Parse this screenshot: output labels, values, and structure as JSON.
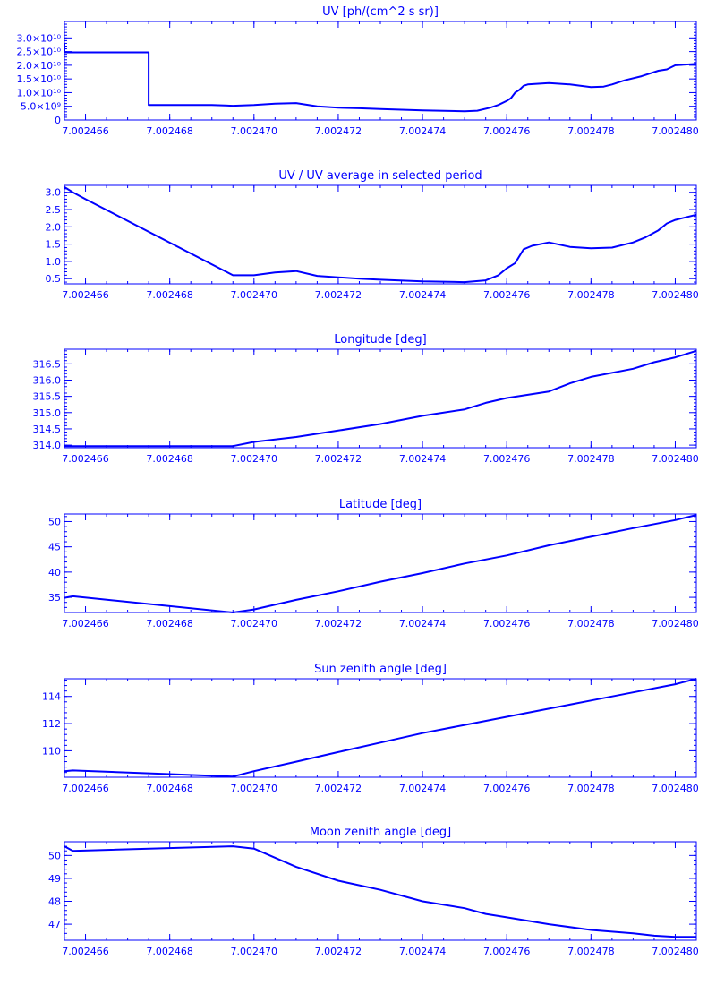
{
  "theme": {
    "color": "#0000ff",
    "background": "#ffffff"
  },
  "x_tick_labels": [
    "7.002466",
    "7.002468",
    "7.002470",
    "7.002472",
    "7.002474",
    "7.002476",
    "7.002478",
    "7.002480"
  ],
  "chart_data": [
    {
      "type": "line",
      "title": "UV [ph/(cm^2 s sr)]",
      "xlim": [
        7.0024655,
        7.0024805
      ],
      "ylim": [
        0,
        36000000000.0
      ],
      "yticks": [
        0,
        5000000000.0,
        10000000000.0,
        15000000000.0,
        20000000000.0,
        25000000000.0,
        30000000000.0
      ],
      "ytick_labels": [
        "0",
        "5.0×10⁹",
        "1.0×10¹⁰",
        "1.5×10¹⁰",
        "2.0×10¹⁰",
        "2.5×10¹⁰",
        "3.0×10¹⁰"
      ],
      "x": [
        7.0024655,
        7.0024655,
        7.0024675,
        7.0024675,
        7.002469,
        7.0024695,
        7.00247,
        7.0024705,
        7.002471,
        7.0024715,
        7.002472,
        7.0024725,
        7.002473,
        7.002474,
        7.002475,
        7.0024753,
        7.0024756,
        7.0024758,
        7.002476,
        7.0024761,
        7.0024762,
        7.0024763,
        7.0024764,
        7.0024765,
        7.002477,
        7.0024775,
        7.002478,
        7.0024783,
        7.0024785,
        7.0024788,
        7.0024792,
        7.0024796,
        7.0024798,
        7.00248,
        7.0024805
      ],
      "y": [
        28000000000.0,
        24700000000.0,
        24700000000.0,
        5500000000.0,
        5500000000.0,
        5200000000.0,
        5500000000.0,
        6000000000.0,
        6200000000.0,
        5000000000.0,
        4500000000.0,
        4300000000.0,
        4000000000.0,
        3500000000.0,
        3200000000.0,
        3400000000.0,
        4500000000.0,
        5500000000.0,
        7000000000.0,
        8000000000.0,
        10000000000.0,
        11000000000.0,
        12500000000.0,
        13000000000.0,
        13500000000.0,
        13000000000.0,
        12000000000.0,
        12200000000.0,
        13000000000.0,
        14500000000.0,
        16000000000.0,
        18000000000.0,
        18500000000.0,
        20000000000.0,
        20500000000.0
      ]
    },
    {
      "type": "line",
      "title": "UV / UV average in selected period",
      "xlim": [
        7.0024655,
        7.0024805
      ],
      "ylim": [
        0.35,
        3.2
      ],
      "yticks": [
        0.5,
        1.0,
        1.5,
        2.0,
        2.5,
        3.0
      ],
      "ytick_labels": [
        "0.5",
        "1.0",
        "1.5",
        "2.0",
        "2.5",
        "3.0"
      ],
      "x": [
        7.0024655,
        7.0024657,
        7.002466,
        7.0024695,
        7.00247,
        7.0024705,
        7.002471,
        7.0024715,
        7.002472,
        7.0024725,
        7.002473,
        7.002474,
        7.002475,
        7.0024755,
        7.0024758,
        7.002476,
        7.0024762,
        7.0024764,
        7.0024766,
        7.002477,
        7.0024775,
        7.002478,
        7.0024785,
        7.002479,
        7.0024793,
        7.0024796,
        7.0024798,
        7.00248,
        7.0024805
      ],
      "y": [
        3.15,
        3.0,
        2.8,
        0.6,
        0.6,
        0.68,
        0.72,
        0.58,
        0.54,
        0.5,
        0.47,
        0.42,
        0.4,
        0.45,
        0.6,
        0.8,
        0.95,
        1.35,
        1.45,
        1.55,
        1.42,
        1.38,
        1.4,
        1.55,
        1.7,
        1.9,
        2.1,
        2.2,
        2.35
      ]
    },
    {
      "type": "line",
      "title": "Longitude [deg]",
      "xlim": [
        7.0024655,
        7.0024805
      ],
      "ylim": [
        313.92,
        316.95
      ],
      "yticks": [
        314.0,
        314.5,
        315.0,
        315.5,
        316.0,
        316.5
      ],
      "ytick_labels": [
        "314.0",
        "314.5",
        "315.0",
        "315.5",
        "316.0",
        "316.5"
      ],
      "x": [
        7.0024655,
        7.0024695,
        7.00247,
        7.002471,
        7.002472,
        7.002473,
        7.002474,
        7.002475,
        7.0024755,
        7.002476,
        7.002477,
        7.0024775,
        7.002478,
        7.002479,
        7.0024795,
        7.00248,
        7.0024805
      ],
      "y": [
        313.97,
        313.97,
        314.1,
        314.25,
        314.45,
        314.65,
        314.9,
        315.1,
        315.3,
        315.45,
        315.65,
        315.9,
        316.1,
        316.35,
        316.55,
        316.7,
        316.9
      ]
    },
    {
      "type": "line",
      "title": "Latitude [deg]",
      "xlim": [
        7.0024655,
        7.0024805
      ],
      "ylim": [
        32,
        51.5
      ],
      "yticks": [
        35,
        40,
        45,
        50
      ],
      "ytick_labels": [
        "35",
        "40",
        "45",
        "50"
      ],
      "x": [
        7.0024655,
        7.0024657,
        7.0024695,
        7.00247,
        7.002471,
        7.002472,
        7.002473,
        7.002474,
        7.002475,
        7.002476,
        7.002477,
        7.002478,
        7.002479,
        7.00248,
        7.0024805
      ],
      "y": [
        34.9,
        35.2,
        32.0,
        32.6,
        34.5,
        36.2,
        38.1,
        39.8,
        41.7,
        43.3,
        45.3,
        47.0,
        48.7,
        50.3,
        51.3
      ]
    },
    {
      "type": "line",
      "title": "Sun zenith angle [deg]",
      "xlim": [
        7.0024655,
        7.0024805
      ],
      "ylim": [
        108.05,
        115.3
      ],
      "yticks": [
        110,
        112,
        114
      ],
      "ytick_labels": [
        "110",
        "112",
        "114"
      ],
      "x": [
        7.0024655,
        7.0024657,
        7.0024695,
        7.00247,
        7.002471,
        7.002472,
        7.002473,
        7.002474,
        7.002475,
        7.002476,
        7.002477,
        7.002478,
        7.002479,
        7.00248,
        7.0024805
      ],
      "y": [
        108.5,
        108.55,
        108.1,
        108.5,
        109.2,
        109.9,
        110.6,
        111.3,
        111.9,
        112.5,
        113.1,
        113.7,
        114.3,
        114.9,
        115.3
      ]
    },
    {
      "type": "line",
      "title": "Moon zenith angle [deg]",
      "xlim": [
        7.0024655,
        7.0024805
      ],
      "ylim": [
        46.3,
        50.6
      ],
      "yticks": [
        47,
        48,
        49,
        50
      ],
      "ytick_labels": [
        "47",
        "48",
        "49",
        "50"
      ],
      "x": [
        7.0024655,
        7.0024657,
        7.0024695,
        7.00247,
        7.002471,
        7.002472,
        7.002473,
        7.002474,
        7.002475,
        7.0024755,
        7.002476,
        7.002477,
        7.002478,
        7.002479,
        7.0024795,
        7.00248,
        7.0024805
      ],
      "y": [
        50.4,
        50.2,
        50.4,
        50.3,
        49.5,
        48.9,
        48.5,
        48.0,
        47.7,
        47.45,
        47.3,
        47.0,
        46.75,
        46.6,
        46.5,
        46.45,
        46.45
      ]
    }
  ]
}
